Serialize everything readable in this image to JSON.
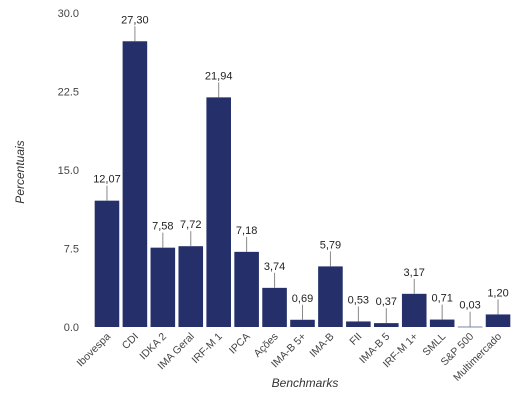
{
  "chart_data": {
    "type": "bar",
    "title": "",
    "xlabel": "Benchmarks",
    "ylabel": "Percentuais",
    "ylim": [
      0,
      30
    ],
    "yticks": [
      "0.0",
      "7.5",
      "15.0",
      "22.5",
      "30.0"
    ],
    "categories": [
      "Ibovespa",
      "CDI",
      "IDKA 2",
      "IMA Geral",
      "IRF-M 1",
      "IPCA",
      "Ações",
      "IMA-B 5+",
      "IMA-B",
      "FII",
      "IMA-B 5",
      "IRF-M 1+",
      "SMLL",
      "S&P 500",
      "Multimercado"
    ],
    "values": [
      12.07,
      27.3,
      7.58,
      7.72,
      21.94,
      7.18,
      3.74,
      0.69,
      5.79,
      0.53,
      0.37,
      3.17,
      0.71,
      0.03,
      1.2
    ],
    "value_labels": [
      "12,07",
      "27,30",
      "7,58",
      "7,72",
      "21,94",
      "7,18",
      "3,74",
      "0,69",
      "5,79",
      "0,53",
      "0,37",
      "3,17",
      "0,71",
      "0,03",
      "1,20"
    ],
    "bar_color": "#25306b",
    "error_bar_color": "#888888",
    "grid": false,
    "legend": "none"
  }
}
